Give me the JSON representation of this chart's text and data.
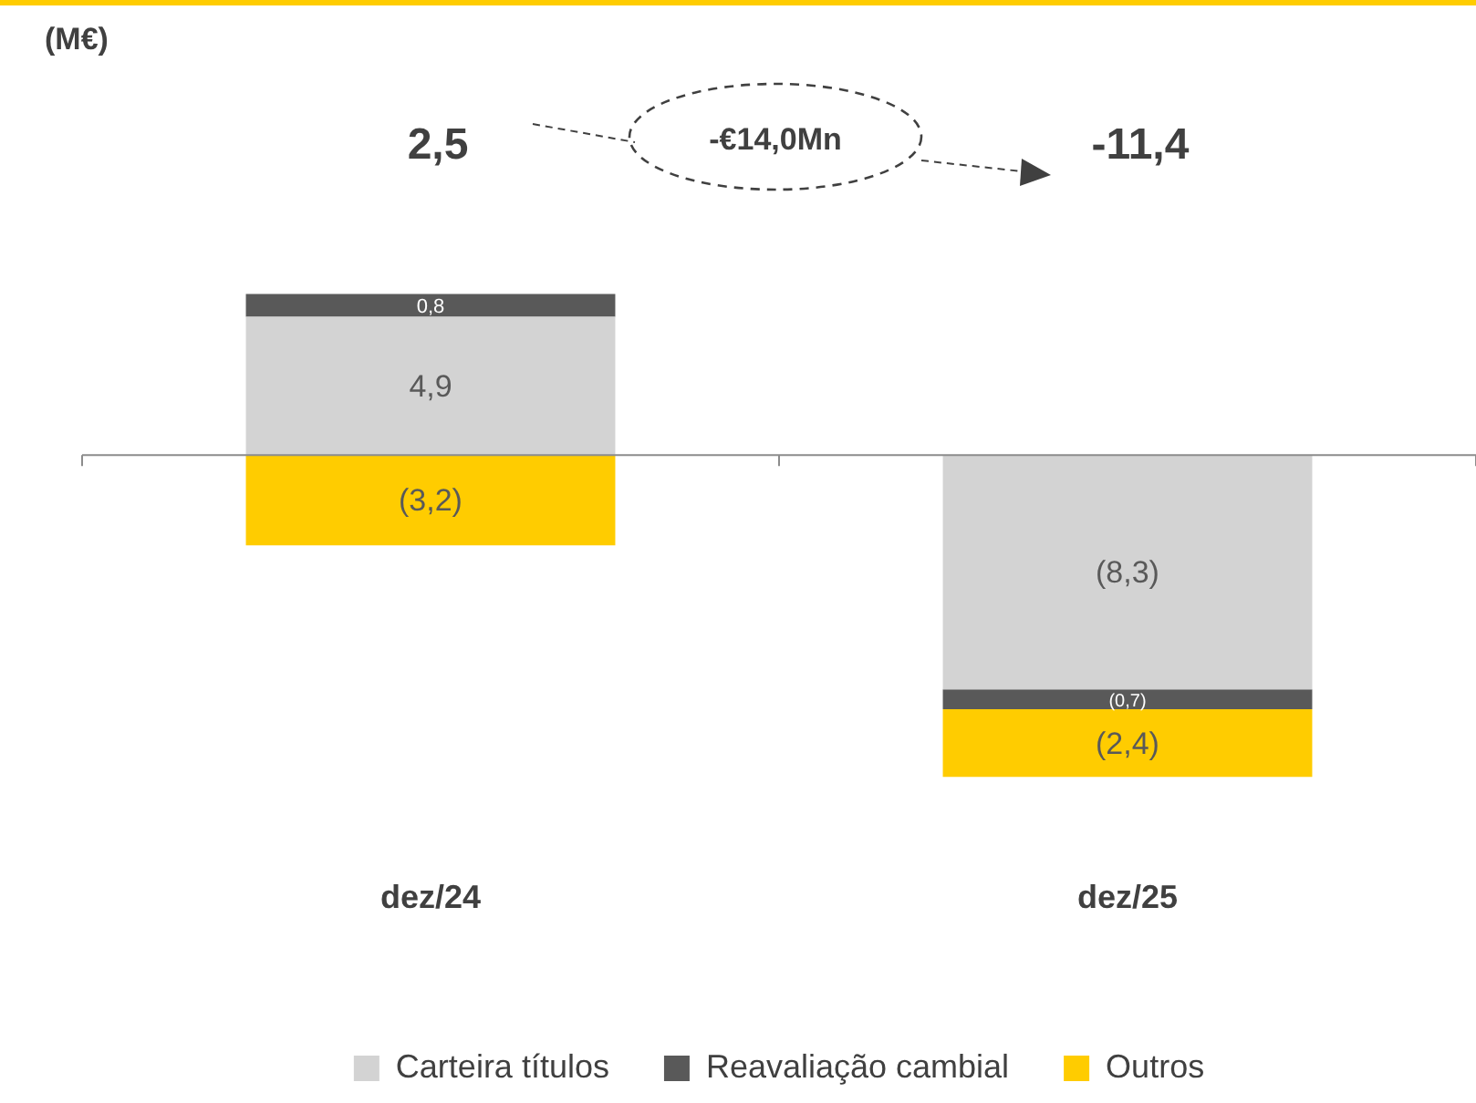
{
  "chart_data": {
    "type": "bar",
    "stacked": true,
    "legend": "bottom",
    "annotations": [
      "(M€)",
      "2,5",
      "-€14,0Mn",
      "-11,4"
    ],
    "categories": [
      "dez/24",
      "dez/25"
    ],
    "series": [
      {
        "name": "Carteira títulos",
        "color": "#d3d3d3",
        "values": [
          4.9,
          -8.3
        ],
        "value_labels": [
          "4,9",
          "(8,3)"
        ]
      },
      {
        "name": "Reavaliação cambial",
        "color": "#595959",
        "values": [
          0.8,
          -0.7
        ],
        "value_labels": [
          "0,8",
          "(0,7)"
        ]
      },
      {
        "name": "Outros",
        "color": "#ffcc00",
        "values": [
          -3.2,
          -2.4
        ],
        "value_labels": [
          "(3,2)",
          "(2,4)"
        ]
      }
    ]
  }
}
